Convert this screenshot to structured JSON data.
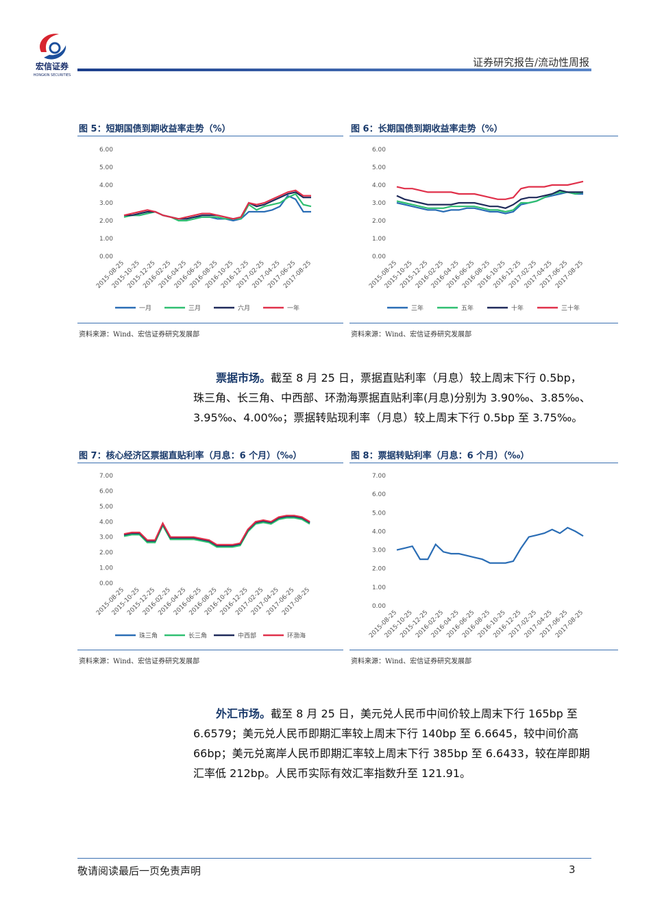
{
  "header": {
    "brand": "宏信证券",
    "brand_en": "HONGKIN SECURITIES",
    "report": "证券研究报告/流动性周报"
  },
  "chart_data": [
    {
      "type": "line",
      "title": "图 5：短期国债到期收益率走势（%）",
      "source": "资料来源：Wind、宏信证券研究发展部",
      "categories": [
        "2015-08-25",
        null,
        "2015-10-25",
        null,
        "2015-12-25",
        null,
        "2016-02-25",
        null,
        "2016-04-25",
        null,
        "2016-06-25",
        null,
        "2016-08-25",
        null,
        "2016-10-25",
        null,
        "2016-12-25",
        null,
        "2017-02-25",
        null,
        "2017-04-25",
        null,
        "2017-06-25",
        null,
        "2017-08-25"
      ],
      "ylim": [
        0,
        6
      ],
      "yticks": [
        {
          "value": 0,
          "label": "0.00"
        },
        {
          "value": 1,
          "label": "1.00"
        },
        {
          "value": 2,
          "label": "2.00"
        },
        {
          "value": 3,
          "label": "3.00"
        },
        {
          "value": 4,
          "label": "4.00"
        },
        {
          "value": 5,
          "label": "5.00"
        },
        {
          "value": 6,
          "label": "6.00"
        }
      ],
      "series": [
        {
          "name": "一月",
          "color": "#2a6db5",
          "values": [
            2.3,
            2.3,
            2.3,
            2.4,
            2.5,
            2.3,
            2.2,
            2.1,
            2.1,
            2.2,
            2.2,
            2.2,
            2.1,
            2.1,
            2.0,
            2.1,
            2.5,
            2.5,
            2.5,
            2.6,
            2.8,
            3.4,
            3.2,
            2.5,
            2.5
          ]
        },
        {
          "name": "三月",
          "color": "#2fbf71",
          "values": [
            2.2,
            2.3,
            2.3,
            2.4,
            2.5,
            2.3,
            2.2,
            2.0,
            2.0,
            2.1,
            2.2,
            2.2,
            2.2,
            2.1,
            2.1,
            2.1,
            2.9,
            2.6,
            2.8,
            2.9,
            3.0,
            3.3,
            3.5,
            2.9,
            2.8
          ]
        },
        {
          "name": "六月",
          "color": "#1f2a5a",
          "values": [
            2.3,
            2.3,
            2.4,
            2.5,
            2.5,
            2.3,
            2.2,
            2.1,
            2.1,
            2.2,
            2.3,
            2.3,
            2.3,
            2.2,
            2.1,
            2.2,
            3.0,
            2.8,
            2.9,
            3.1,
            3.3,
            3.5,
            3.6,
            3.3,
            3.3
          ]
        },
        {
          "name": "一年",
          "color": "#e0304a",
          "values": [
            2.3,
            2.4,
            2.5,
            2.6,
            2.5,
            2.3,
            2.2,
            2.1,
            2.2,
            2.3,
            2.4,
            2.4,
            2.3,
            2.2,
            2.1,
            2.2,
            3.0,
            2.9,
            3.0,
            3.2,
            3.4,
            3.6,
            3.7,
            3.4,
            3.4
          ]
        }
      ]
    },
    {
      "type": "line",
      "title": "图 6：长期国债到期收益率走势（%）",
      "source": "资料来源：Wind、宏信证券研究发展部",
      "categories": [
        "2015-08-25",
        null,
        "2015-10-25",
        null,
        "2015-12-25",
        null,
        "2016-02-25",
        null,
        "2016-04-25",
        null,
        "2016-06-25",
        null,
        "2016-08-25",
        null,
        "2016-10-25",
        null,
        "2016-12-25",
        null,
        "2017-02-25",
        null,
        "2017-04-25",
        null,
        "2017-06-25",
        null,
        "2017-08-25"
      ],
      "ylim": [
        0,
        6
      ],
      "yticks": [
        {
          "value": 0,
          "label": "0.00"
        },
        {
          "value": 1,
          "label": "1.00"
        },
        {
          "value": 2,
          "label": "2.00"
        },
        {
          "value": 3,
          "label": "3.00"
        },
        {
          "value": 4,
          "label": "4.00"
        },
        {
          "value": 5,
          "label": "5.00"
        },
        {
          "value": 6,
          "label": "6.00"
        }
      ],
      "series": [
        {
          "name": "三年",
          "color": "#2a6db5",
          "values": [
            3.0,
            2.9,
            2.8,
            2.7,
            2.6,
            2.6,
            2.5,
            2.6,
            2.6,
            2.7,
            2.7,
            2.6,
            2.5,
            2.5,
            2.4,
            2.5,
            2.9,
            3.0,
            3.1,
            3.3,
            3.4,
            3.5,
            3.6,
            3.5,
            3.5
          ]
        },
        {
          "name": "五年",
          "color": "#2fbf71",
          "values": [
            3.1,
            3.0,
            2.9,
            2.8,
            2.7,
            2.7,
            2.7,
            2.8,
            2.8,
            2.8,
            2.8,
            2.7,
            2.6,
            2.6,
            2.5,
            2.6,
            3.0,
            3.0,
            3.1,
            3.3,
            3.5,
            3.6,
            3.6,
            3.5,
            3.6
          ]
        },
        {
          "name": "十年",
          "color": "#1f2a5a",
          "values": [
            3.4,
            3.2,
            3.1,
            3.0,
            2.9,
            2.9,
            2.9,
            2.9,
            3.0,
            3.0,
            3.0,
            2.9,
            2.8,
            2.8,
            2.7,
            2.9,
            3.2,
            3.3,
            3.3,
            3.4,
            3.5,
            3.7,
            3.6,
            3.6,
            3.6
          ]
        },
        {
          "name": "三十年",
          "color": "#e0304a",
          "values": [
            3.9,
            3.8,
            3.8,
            3.7,
            3.6,
            3.6,
            3.6,
            3.6,
            3.5,
            3.5,
            3.5,
            3.4,
            3.3,
            3.2,
            3.2,
            3.3,
            3.8,
            3.9,
            3.9,
            3.9,
            4.0,
            4.0,
            4.0,
            4.1,
            4.2
          ]
        }
      ]
    },
    {
      "type": "line",
      "title": "图 7：核心经济区票据直贴利率（月息：6 个月）（‰）",
      "source": "资料来源：Wind、宏信证券研究发展部",
      "categories": [
        "2015-08-25",
        null,
        "2015-10-25",
        null,
        "2015-12-25",
        null,
        "2016-02-25",
        null,
        "2016-04-25",
        null,
        "2016-06-25",
        null,
        "2016-08-25",
        null,
        "2016-10-25",
        null,
        "2016-12-25",
        null,
        "2017-02-25",
        null,
        "2017-04-25",
        null,
        "2017-06-25",
        null,
        "2017-08-25"
      ],
      "ylim": [
        0,
        7
      ],
      "yticks": [
        {
          "value": 0,
          "label": "0.00"
        },
        {
          "value": 1,
          "label": "1.00"
        },
        {
          "value": 2,
          "label": "2.00"
        },
        {
          "value": 3,
          "label": "3.00"
        },
        {
          "value": 4,
          "label": "4.00"
        },
        {
          "value": 5,
          "label": "5.00"
        },
        {
          "value": 6,
          "label": "6.00"
        },
        {
          "value": 7,
          "label": "7.00"
        }
      ],
      "series": [
        {
          "name": "珠三角",
          "color": "#2a6db5",
          "values": [
            3.1,
            3.2,
            3.2,
            2.7,
            2.7,
            3.8,
            2.9,
            2.9,
            2.9,
            2.9,
            2.8,
            2.7,
            2.4,
            2.4,
            2.4,
            2.5,
            3.4,
            3.9,
            4.0,
            3.9,
            4.2,
            4.3,
            4.3,
            4.2,
            3.9
          ]
        },
        {
          "name": "长三角",
          "color": "#2fbf71",
          "values": [
            3.05,
            3.15,
            3.15,
            2.65,
            2.65,
            3.75,
            2.85,
            2.85,
            2.85,
            2.85,
            2.75,
            2.65,
            2.35,
            2.35,
            2.35,
            2.45,
            3.35,
            3.85,
            3.95,
            3.85,
            4.15,
            4.25,
            4.25,
            4.15,
            3.85
          ]
        },
        {
          "name": "中西部",
          "color": "#1f2a5a",
          "values": [
            3.15,
            3.25,
            3.25,
            2.75,
            2.75,
            3.85,
            2.95,
            2.95,
            2.95,
            2.95,
            2.85,
            2.75,
            2.45,
            2.45,
            2.45,
            2.55,
            3.45,
            3.95,
            4.05,
            3.95,
            4.25,
            4.35,
            4.35,
            4.25,
            3.95
          ]
        },
        {
          "name": "环渤海",
          "color": "#e0304a",
          "values": [
            3.2,
            3.3,
            3.3,
            2.8,
            2.8,
            3.9,
            3.0,
            3.0,
            3.0,
            3.0,
            2.9,
            2.8,
            2.5,
            2.5,
            2.5,
            2.6,
            3.5,
            4.0,
            4.1,
            4.0,
            4.3,
            4.4,
            4.4,
            4.3,
            4.0
          ]
        }
      ]
    },
    {
      "type": "line",
      "title": "图 8：票据转贴利率（月息：6 个月）（‰）",
      "source": "资料来源：Wind、宏信证券研究发展部",
      "categories": [
        "2015-08-25",
        null,
        "2015-10-25",
        null,
        "2015-12-25",
        null,
        "2016-02-25",
        null,
        "2016-04-25",
        null,
        "2016-06-25",
        null,
        "2016-08-25",
        null,
        "2016-10-25",
        null,
        "2016-12-25",
        null,
        "2017-02-25",
        null,
        "2017-04-25",
        null,
        "2017-06-25",
        null,
        "2017-08-25"
      ],
      "ylim": [
        0,
        7
      ],
      "yticks": [
        {
          "value": 0,
          "label": "0.00"
        },
        {
          "value": 1,
          "label": "1.00"
        },
        {
          "value": 2,
          "label": "2.00"
        },
        {
          "value": 3,
          "label": "3.00"
        },
        {
          "value": 4,
          "label": "4.00"
        },
        {
          "value": 5,
          "label": "5.00"
        },
        {
          "value": 6,
          "label": "6.00"
        },
        {
          "value": 7,
          "label": "7.00"
        }
      ],
      "color": "#2a6db5",
      "values": [
        3.0,
        3.1,
        3.2,
        2.5,
        2.5,
        3.3,
        2.9,
        2.8,
        2.8,
        2.7,
        2.6,
        2.5,
        2.3,
        2.3,
        2.3,
        2.4,
        3.1,
        3.7,
        3.8,
        3.9,
        4.1,
        3.9,
        4.2,
        4.0,
        3.75
      ]
    }
  ],
  "paragraphs": [
    {
      "lead": "票据市场。",
      "text": "截至 8 月 25 日，票据直贴利率（月息）较上周末下行 0.5bp，珠三角、长三角、中西部、环渤海票据直贴利率(月息)分别为 3.90‰、3.85‰、3.95‰、4.00‰；票据转贴现利率（月息）较上周末下行 0.5bp 至 3.75‰。"
    },
    {
      "lead": "外汇市场。",
      "text": "截至 8 月 25 日，美元兑人民币中间价较上周末下行 165bp 至 6.6579；美元兑人民币即期汇率较上周末下行 140bp 至 6.6645，较中间价高 66bp；美元兑离岸人民币即期汇率较上周末下行 385bp 至 6.6433，较在岸即期汇率低 212bp。人民币实际有效汇率指数升至 121.91。"
    }
  ],
  "footer": {
    "notice": "敬请阅读最后一页免责声明",
    "page": "3"
  }
}
